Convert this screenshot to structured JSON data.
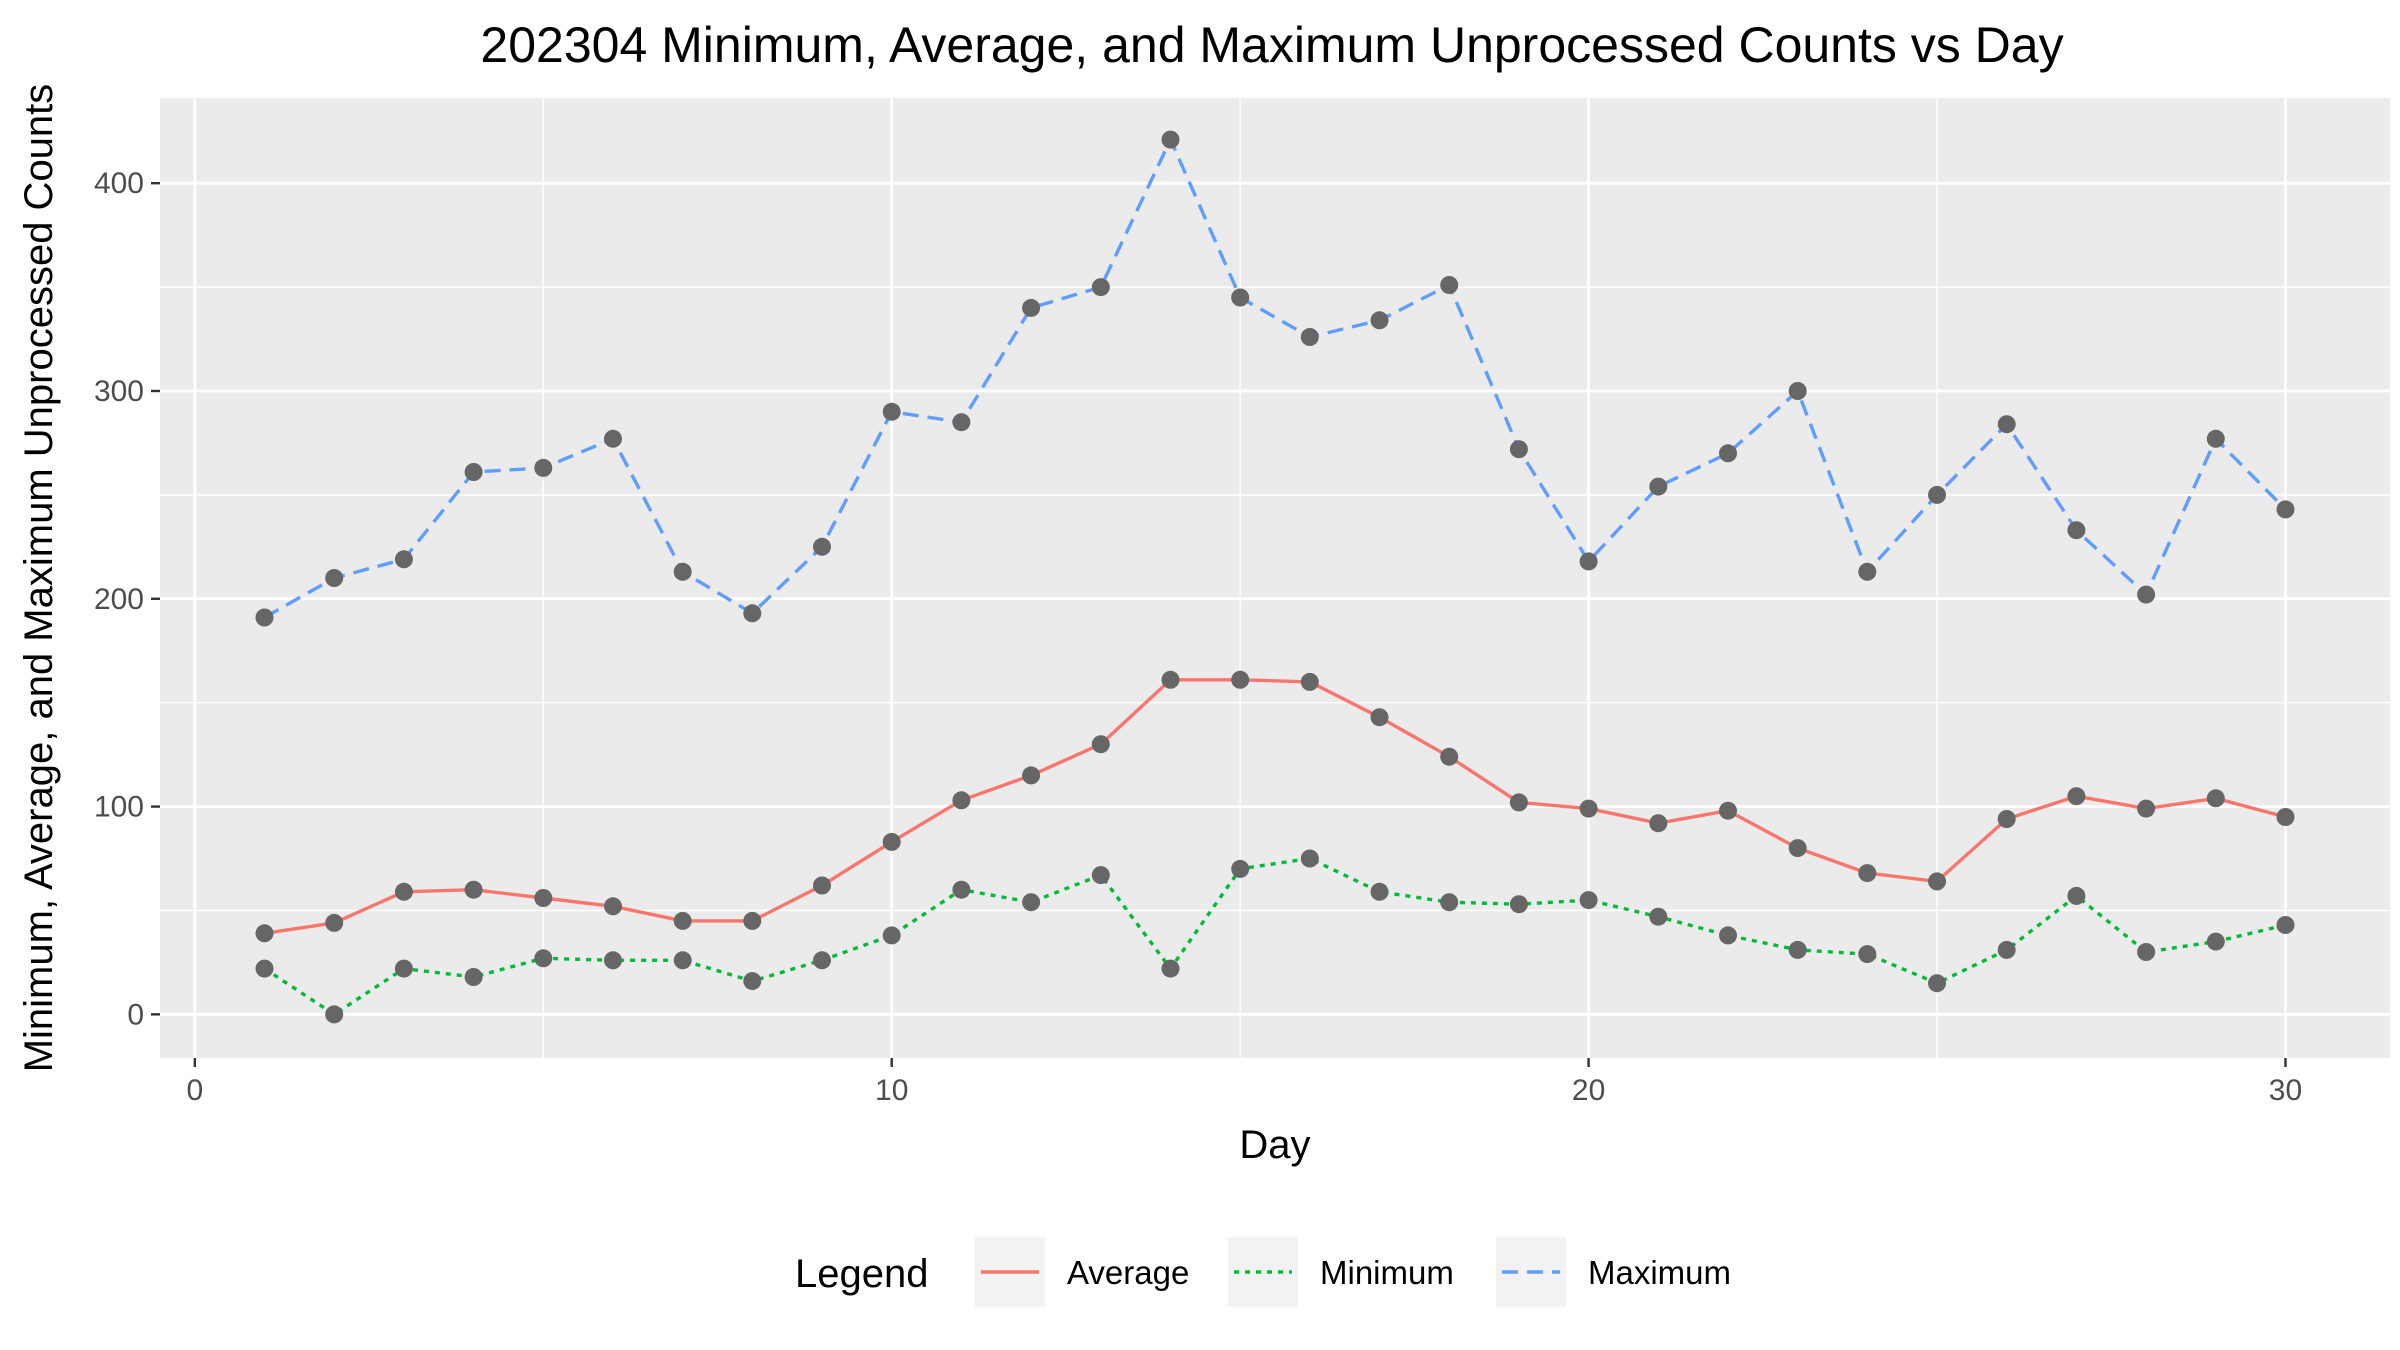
{
  "chart_data": {
    "type": "line",
    "title": "202304 Minimum, Average, and Maximum Unprocessed Counts vs Day",
    "xlabel": "Day",
    "ylabel": "Minimum, Average, and Maximum Unprocessed Counts",
    "xlim": [
      -0.5,
      31.5
    ],
    "ylim": [
      -21,
      441
    ],
    "x_ticks": [
      0,
      10,
      20,
      30
    ],
    "y_ticks": [
      0,
      100,
      200,
      300,
      400
    ],
    "x_tick_labels": [
      "0",
      "10",
      "20",
      "30"
    ],
    "y_tick_labels": [
      "0",
      "100",
      "200",
      "300",
      "400"
    ],
    "grid": true,
    "background": "#ebebeb",
    "point_color": "#666666",
    "x": [
      1,
      2,
      3,
      4,
      5,
      6,
      7,
      8,
      9,
      10,
      11,
      12,
      13,
      14,
      15,
      16,
      17,
      18,
      19,
      20,
      21,
      22,
      23,
      24,
      25,
      26,
      27,
      28,
      29,
      30
    ],
    "series": [
      {
        "name": "Average",
        "color": "#f8766d",
        "dash": "solid",
        "values": [
          39,
          44,
          59,
          60,
          56,
          52,
          45,
          45,
          62,
          83,
          103,
          115,
          130,
          161,
          161,
          160,
          143,
          124,
          102,
          99,
          92,
          98,
          80,
          68,
          64,
          94,
          105,
          99,
          104,
          95
        ]
      },
      {
        "name": "Minimum",
        "color": "#00ba38",
        "dash": "dotted",
        "values": [
          22,
          0,
          22,
          18,
          27,
          26,
          26,
          16,
          26,
          38,
          60,
          54,
          67,
          22,
          70,
          75,
          59,
          54,
          53,
          55,
          47,
          38,
          31,
          29,
          15,
          31,
          57,
          30,
          35,
          43
        ]
      },
      {
        "name": "Maximum",
        "color": "#619cff",
        "dash": "dashed",
        "values": [
          191,
          210,
          219,
          261,
          263,
          277,
          213,
          193,
          225,
          290,
          285,
          340,
          350,
          421,
          345,
          326,
          334,
          351,
          272,
          218,
          254,
          270,
          300,
          213,
          250,
          284,
          233,
          202,
          277,
          243
        ]
      }
    ],
    "legend": {
      "title": "Legend",
      "position": "bottom",
      "items": [
        "Average",
        "Minimum",
        "Maximum"
      ]
    }
  }
}
